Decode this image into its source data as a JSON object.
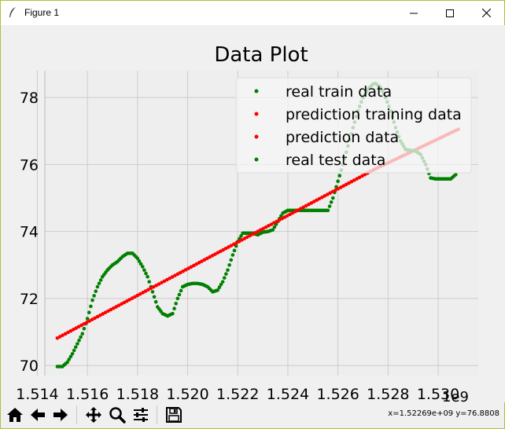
{
  "window": {
    "title": "Figure 1",
    "minimize_icon": "minimize-icon",
    "maximize_icon": "maximize-icon",
    "close_icon": "close-icon"
  },
  "toolbar": {
    "buttons": [
      {
        "name": "home-button",
        "icon": "home-icon"
      },
      {
        "name": "back-button",
        "icon": "arrow-left-icon"
      },
      {
        "name": "forward-button",
        "icon": "arrow-right-icon"
      },
      {
        "name": "pan-button",
        "icon": "move-icon"
      },
      {
        "name": "zoom-button",
        "icon": "magnifier-icon"
      },
      {
        "name": "configure-subplots-button",
        "icon": "sliders-icon"
      },
      {
        "name": "save-button",
        "icon": "floppy-icon"
      }
    ],
    "coords": "x=1.52269e+09  y=76.8808"
  },
  "chart_data": {
    "type": "scatter",
    "title": "Data Plot",
    "xlabel": "",
    "ylabel": "",
    "x_offset_label": "1e9",
    "xlim": [
      1.5143,
      1.5316
    ],
    "ylim": [
      69.7,
      78.8
    ],
    "xticks": [
      "1.514",
      "1.516",
      "1.518",
      "1.520",
      "1.522",
      "1.524",
      "1.526",
      "1.528",
      "1.530"
    ],
    "xtick_values": [
      1.514,
      1.516,
      1.518,
      1.52,
      1.522,
      1.524,
      1.526,
      1.528,
      1.53
    ],
    "yticks": [
      "70",
      "72",
      "74",
      "76",
      "78"
    ],
    "ytick_values": [
      70,
      72,
      74,
      76,
      78
    ],
    "grid": true,
    "legend_position": "upper right",
    "colors": {
      "green": "#008000",
      "red": "#ff0000",
      "background": "#eeeeee",
      "grid": "#cccccc"
    },
    "series": [
      {
        "name": "real train data",
        "color": "#008000",
        "x": [
          1.5148,
          1.515,
          1.5152,
          1.5154,
          1.5156,
          1.5158,
          1.516,
          1.5162,
          1.5164,
          1.5166,
          1.5168,
          1.517,
          1.5172,
          1.5174,
          1.5176,
          1.5178,
          1.518,
          1.5182,
          1.5184,
          1.5186,
          1.5188,
          1.519,
          1.5192,
          1.5194,
          1.5196,
          1.5198,
          1.52,
          1.5202,
          1.5204,
          1.5206,
          1.5208,
          1.521,
          1.5212,
          1.5214,
          1.5216,
          1.5218,
          1.522,
          1.5222,
          1.5224,
          1.5226,
          1.5228,
          1.523,
          1.5232,
          1.5234,
          1.5236,
          1.5238,
          1.524,
          1.5242,
          1.5244,
          1.5246,
          1.5248,
          1.525,
          1.5252,
          1.5254,
          1.5256,
          1.5258,
          1.526,
          1.5262,
          1.5264,
          1.5266,
          1.5268,
          1.527,
          1.5272,
          1.5274
        ],
        "y": [
          69.97,
          69.97,
          70.1,
          70.35,
          70.65,
          70.95,
          71.4,
          71.95,
          72.35,
          72.65,
          72.85,
          73.0,
          73.1,
          73.25,
          73.35,
          73.35,
          73.2,
          72.95,
          72.65,
          72.2,
          71.75,
          71.55,
          71.48,
          71.55,
          72.0,
          72.35,
          72.42,
          72.45,
          72.45,
          72.42,
          72.35,
          72.2,
          72.25,
          72.5,
          72.85,
          73.3,
          73.7,
          73.95,
          73.95,
          73.95,
          73.9,
          73.98,
          74.0,
          74.05,
          74.3,
          74.55,
          74.63,
          74.63,
          74.63,
          74.63,
          74.63,
          74.63,
          74.63,
          74.63,
          74.63,
          75.0,
          75.5,
          76.0,
          76.55,
          77.1,
          77.6,
          78.0,
          78.25,
          78.4
        ]
      },
      {
        "name": "prediction training data",
        "color": "#ff0000",
        "x": [
          1.5148,
          1.5275
        ],
        "y": [
          70.82,
          75.87
        ],
        "fit": "linear"
      },
      {
        "name": "prediction data",
        "color": "#ff0000",
        "x": [
          1.5275,
          1.5308
        ],
        "y": [
          75.87,
          77.05
        ],
        "fit": "linear"
      },
      {
        "name": "real test data",
        "color": "#008000",
        "x": [
          1.5275,
          1.5277,
          1.5279,
          1.5281,
          1.5283,
          1.5285,
          1.5287,
          1.5289,
          1.5291,
          1.5293,
          1.5295,
          1.5297,
          1.5299,
          1.5301,
          1.5303,
          1.5305,
          1.5307
        ],
        "y": [
          78.42,
          78.3,
          78.0,
          77.6,
          77.1,
          76.7,
          76.45,
          76.42,
          76.4,
          76.3,
          76.0,
          75.6,
          75.57,
          75.57,
          75.57,
          75.57,
          75.7
        ]
      }
    ]
  }
}
